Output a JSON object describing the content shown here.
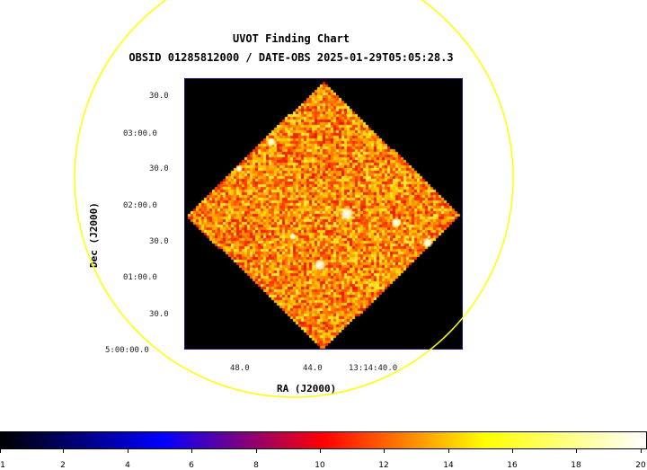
{
  "title": "UVOT Finding Chart",
  "subtitle": "OBSID 01285812000 / DATE-OBS 2025-01-29T05:05:28.3",
  "axes": {
    "xlabel": "RA (J2000)",
    "ylabel": "Dec (J2000)",
    "x_ticks": [
      "48.0",
      "44.0",
      "13:14:40.0"
    ],
    "y_ticks": [
      "30.0",
      "03:00.0",
      "30.0",
      "02:00.0",
      "30.0",
      "01:00.0",
      "30.0",
      "5:00:00.0"
    ]
  },
  "colorbar": {
    "colormap": "heat",
    "colors": [
      "#000000",
      "#0000ff",
      "#ff0000",
      "#ffff00",
      "#ffffff"
    ],
    "ticks": [
      "1",
      "2",
      "4",
      "6",
      "8",
      "10",
      "12",
      "14",
      "16",
      "18",
      "20"
    ]
  },
  "overlay": {
    "circle_color": "#ffff00"
  }
}
